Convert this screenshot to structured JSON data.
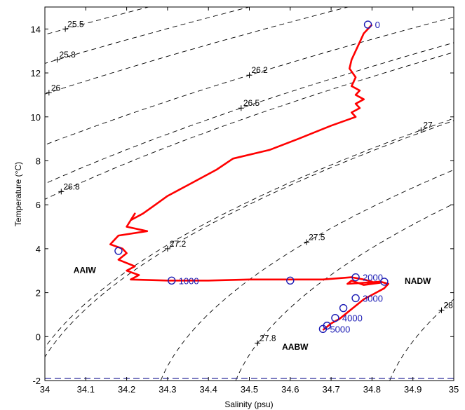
{
  "chart_data": {
    "type": "line",
    "title": "",
    "xlabel": "Salinity (psu)",
    "ylabel": "Temperature (°C)",
    "xlim": [
      34,
      35
    ],
    "ylim": [
      -2,
      15
    ],
    "xticks": [
      "34",
      "34.1",
      "34.2",
      "34.3",
      "34.4",
      "34.5",
      "34.6",
      "34.7",
      "34.8",
      "34.9",
      "35"
    ],
    "yticks": [
      "-2",
      "0",
      "2",
      "4",
      "6",
      "8",
      "10",
      "12",
      "14"
    ],
    "grid": false,
    "legend": "none",
    "colors": {
      "profile": "#ff0000",
      "markers": "#1a1ab4",
      "contours": "#000000",
      "freezing_line": "#2a2a9a"
    },
    "series": [
      {
        "x": [
          34.8,
          34.79,
          34.78,
          34.77,
          34.76,
          34.75,
          34.745,
          34.76,
          34.75,
          34.77,
          34.76,
          34.78,
          34.76,
          34.77,
          34.75,
          34.76,
          34.7,
          34.62,
          34.55,
          34.46,
          34.42,
          34.35,
          34.3,
          34.27,
          34.24,
          34.21,
          34.22,
          34.2,
          34.25,
          34.18,
          34.17,
          34.16,
          34.19,
          34.2,
          34.18,
          34.22,
          34.2,
          34.23,
          34.21,
          34.3,
          34.4,
          34.5,
          34.6,
          34.68,
          34.75,
          34.78,
          34.8,
          34.79,
          34.82,
          34.78,
          34.75,
          34.74,
          34.82,
          34.84,
          34.83,
          34.81,
          34.78,
          34.76,
          34.74,
          34.72,
          34.7,
          34.69,
          34.68
        ],
        "y": [
          14.2,
          14.0,
          13.8,
          13.4,
          13.0,
          12.6,
          12.2,
          11.8,
          11.4,
          11.2,
          11.0,
          10.8,
          10.6,
          10.4,
          10.2,
          10.0,
          9.6,
          9.0,
          8.5,
          8.1,
          7.6,
          6.9,
          6.4,
          6.0,
          5.6,
          5.3,
          5.6,
          5.0,
          4.8,
          4.6,
          4.4,
          4.2,
          4.0,
          3.8,
          3.5,
          3.2,
          3.0,
          2.8,
          2.6,
          2.55,
          2.55,
          2.6,
          2.6,
          2.6,
          2.7,
          2.6,
          2.5,
          2.4,
          2.45,
          2.35,
          2.55,
          2.4,
          2.5,
          2.4,
          2.2,
          2.0,
          1.7,
          1.4,
          1.1,
          0.8,
          0.6,
          0.45,
          0.3
        ]
      }
    ],
    "depth_markers": [
      {
        "label": "0",
        "x": 34.79,
        "y": 14.2
      },
      {
        "label": "",
        "x": 34.18,
        "y": 3.9
      },
      {
        "label": "1000",
        "x": 34.31,
        "y": 2.55
      },
      {
        "label": "",
        "x": 34.6,
        "y": 2.55
      },
      {
        "label": "2000",
        "x": 34.76,
        "y": 2.7
      },
      {
        "label": "",
        "x": 34.83,
        "y": 2.5
      },
      {
        "label": "3000",
        "x": 34.76,
        "y": 1.75
      },
      {
        "label": "",
        "x": 34.73,
        "y": 1.3
      },
      {
        "label": "4000",
        "x": 34.71,
        "y": 0.85
      },
      {
        "label": "",
        "x": 34.69,
        "y": 0.5
      },
      {
        "label": "5000",
        "x": 34.68,
        "y": 0.35
      }
    ],
    "density_contours": [
      {
        "label": "25.5",
        "x": 34.05,
        "y": 14.0
      },
      {
        "label": "25.8",
        "x": 34.03,
        "y": 12.6
      },
      {
        "label": "26",
        "x": 34.01,
        "y": 11.1
      },
      {
        "label": "26.2",
        "x": 34.5,
        "y": 11.9
      },
      {
        "label": "26.5",
        "x": 34.48,
        "y": 10.4
      },
      {
        "label": "26.8",
        "x": 34.04,
        "y": 6.6
      },
      {
        "label": "27",
        "x": 34.92,
        "y": 9.4
      },
      {
        "label": "27.2",
        "x": 34.3,
        "y": 4.0
      },
      {
        "label": "27.5",
        "x": 34.64,
        "y": 4.3
      },
      {
        "label": "27.8",
        "x": 34.52,
        "y": -0.3
      },
      {
        "label": "28",
        "x": 34.97,
        "y": 1.2
      }
    ],
    "water_masses": [
      {
        "label": "AAIW",
        "x": 34.07,
        "y": 2.9
      },
      {
        "label": "NADW",
        "x": 34.88,
        "y": 2.4
      },
      {
        "label": "AABW",
        "x": 34.58,
        "y": -0.6
      }
    ]
  }
}
